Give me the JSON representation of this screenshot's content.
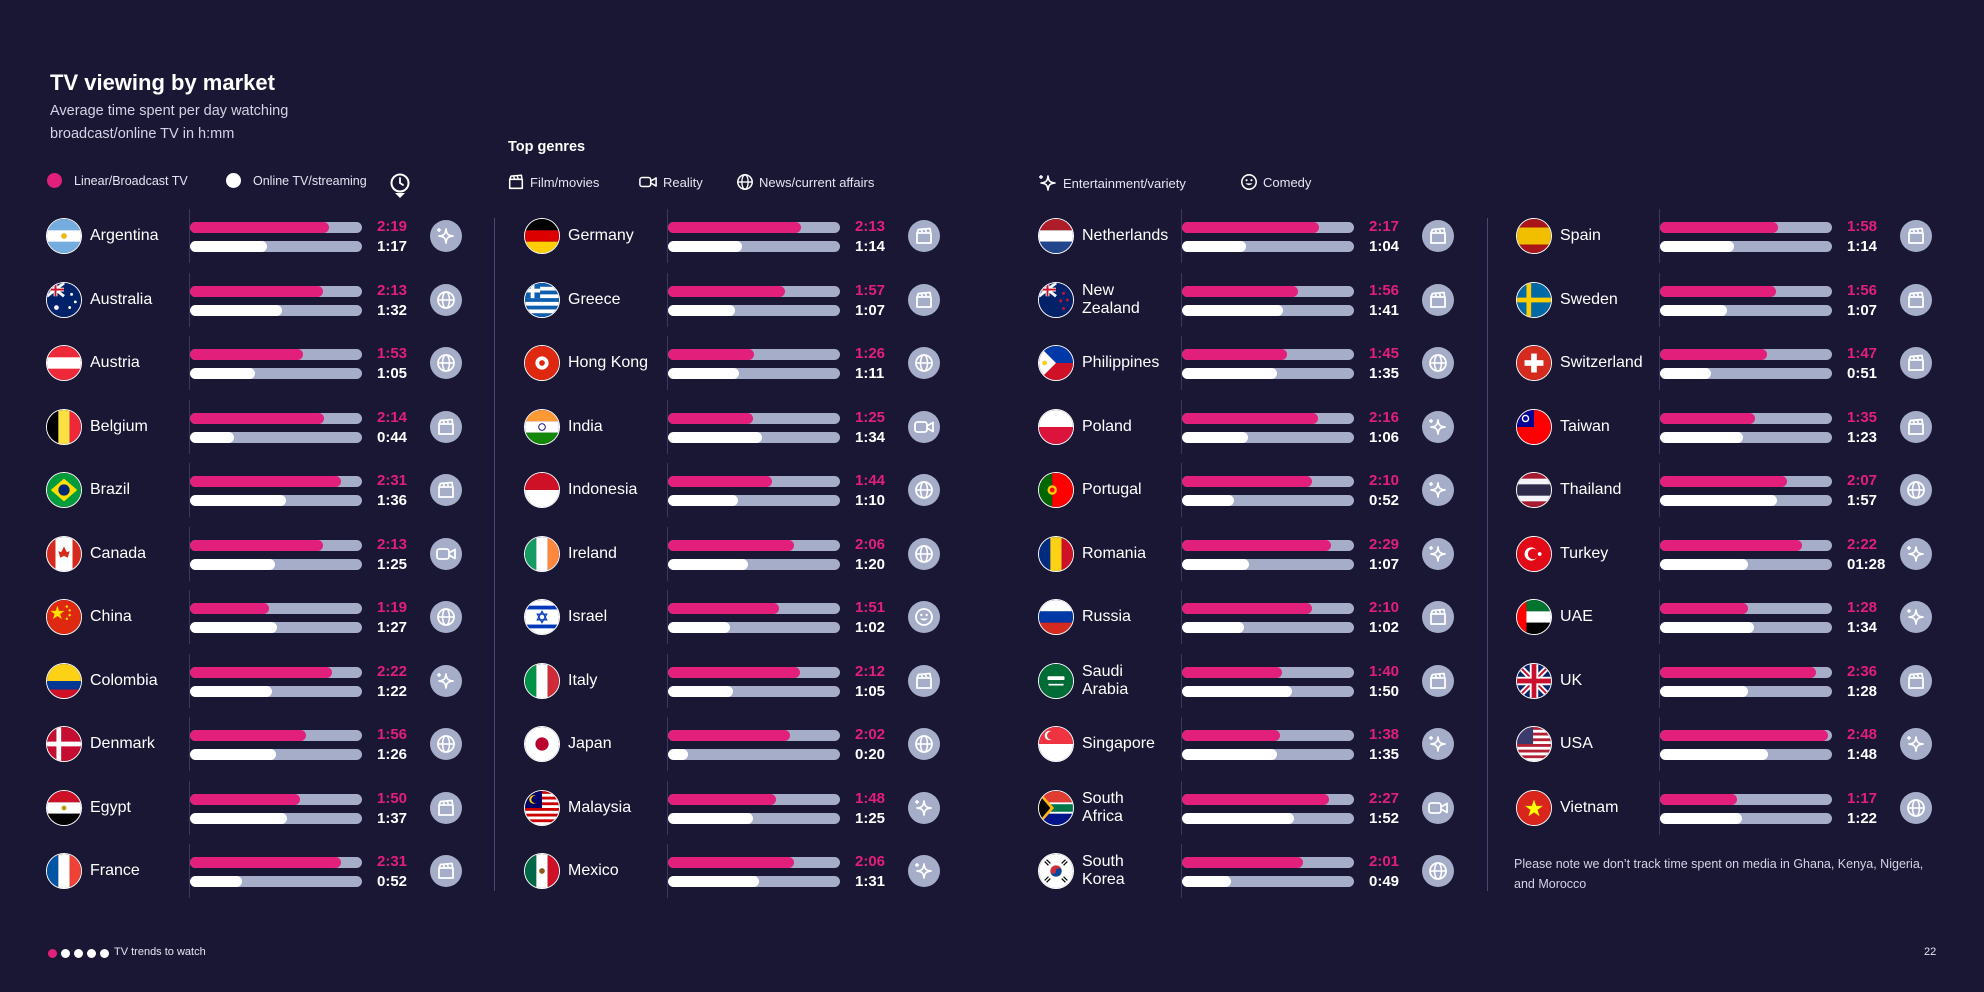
{
  "header": {
    "title": "TV viewing by market",
    "subtitle": "Average time spent per day watching broadcast/online TV in h:mm"
  },
  "legend": {
    "linear_label": "Linear/Broadcast TV",
    "online_label": "Online TV/streaming",
    "top_genre_marker_icon": "clock-marker-icon"
  },
  "genres": {
    "title": "Top genres",
    "items": [
      {
        "key": "film",
        "label": "Film/movies",
        "icon": "clapperboard-icon"
      },
      {
        "key": "reality",
        "label": "Reality",
        "icon": "video-camera-icon"
      },
      {
        "key": "news",
        "label": "News/current affairs",
        "icon": "globe-icon"
      },
      {
        "key": "ent",
        "label": "Entertainment/variety",
        "icon": "sparkle-icon"
      },
      {
        "key": "comedy",
        "label": "Comedy",
        "icon": "smiley-icon"
      }
    ]
  },
  "colors": {
    "background": "#1a1734",
    "linear": "#e21f7a",
    "online": "#ffffff",
    "track": "#a6adc8"
  },
  "chart_data": {
    "type": "bar",
    "title": "TV viewing by market",
    "subtitle": "Average time spent per day watching broadcast/online TV in h:mm",
    "unit": "h:mm",
    "xlim_minutes": [
      0,
      172
    ],
    "series": [
      {
        "name": "Linear/Broadcast TV",
        "key": "linear",
        "color": "#e21f7a"
      },
      {
        "name": "Online TV/streaming",
        "key": "online",
        "color": "#ffffff"
      }
    ],
    "columns": [
      [
        {
          "country": "Argentina",
          "linear": "2:19",
          "online": "1:17",
          "genre": "ent",
          "flag": "argentina"
        },
        {
          "country": "Australia",
          "linear": "2:13",
          "online": "1:32",
          "genre": "news",
          "flag": "australia"
        },
        {
          "country": "Austria",
          "linear": "1:53",
          "online": "1:05",
          "genre": "news",
          "flag": "austria"
        },
        {
          "country": "Belgium",
          "linear": "2:14",
          "online": "0:44",
          "genre": "film",
          "flag": "belgium"
        },
        {
          "country": "Brazil",
          "linear": "2:31",
          "online": "1:36",
          "genre": "film",
          "flag": "brazil"
        },
        {
          "country": "Canada",
          "linear": "2:13",
          "online": "1:25",
          "genre": "reality",
          "flag": "canada"
        },
        {
          "country": "China",
          "linear": "1:19",
          "online": "1:27",
          "genre": "news",
          "flag": "china"
        },
        {
          "country": "Colombia",
          "linear": "2:22",
          "online": "1:22",
          "genre": "ent",
          "flag": "colombia"
        },
        {
          "country": "Denmark",
          "linear": "1:56",
          "online": "1:26",
          "genre": "news",
          "flag": "denmark"
        },
        {
          "country": "Egypt",
          "linear": "1:50",
          "online": "1:37",
          "genre": "film",
          "flag": "egypt"
        },
        {
          "country": "France",
          "linear": "2:31",
          "online": "0:52",
          "genre": "film",
          "flag": "france"
        }
      ],
      [
        {
          "country": "Germany",
          "linear": "2:13",
          "online": "1:14",
          "genre": "film",
          "flag": "germany"
        },
        {
          "country": "Greece",
          "linear": "1:57",
          "online": "1:07",
          "genre": "film",
          "flag": "greece"
        },
        {
          "country": "Hong Kong",
          "linear": "1:26",
          "online": "1:11",
          "genre": "news",
          "flag": "hongkong"
        },
        {
          "country": "India",
          "linear": "1:25",
          "online": "1:34",
          "genre": "reality",
          "flag": "india"
        },
        {
          "country": "Indonesia",
          "linear": "1:44",
          "online": "1:10",
          "genre": "news",
          "flag": "indonesia"
        },
        {
          "country": "Ireland",
          "linear": "2:06",
          "online": "1:20",
          "genre": "news",
          "flag": "ireland"
        },
        {
          "country": "Israel",
          "linear": "1:51",
          "online": "1:02",
          "genre": "comedy",
          "flag": "israel"
        },
        {
          "country": "Italy",
          "linear": "2:12",
          "online": "1:05",
          "genre": "film",
          "flag": "italy"
        },
        {
          "country": "Japan",
          "linear": "2:02",
          "online": "0:20",
          "genre": "news",
          "flag": "japan"
        },
        {
          "country": "Malaysia",
          "linear": "1:48",
          "online": "1:25",
          "genre": "ent",
          "flag": "malaysia"
        },
        {
          "country": "Mexico",
          "linear": "2:06",
          "online": "1:31",
          "genre": "ent",
          "flag": "mexico"
        }
      ],
      [
        {
          "country": "Netherlands",
          "linear": "2:17",
          "online": "1:04",
          "genre": "film",
          "flag": "netherlands"
        },
        {
          "country": "New Zealand",
          "linear": "1:56",
          "online": "1:41",
          "genre": "film",
          "flag": "newzealand"
        },
        {
          "country": "Philippines",
          "linear": "1:45",
          "online": "1:35",
          "genre": "news",
          "flag": "philippines"
        },
        {
          "country": "Poland",
          "linear": "2:16",
          "online": "1:06",
          "genre": "ent",
          "flag": "poland"
        },
        {
          "country": "Portugal",
          "linear": "2:10",
          "online": "0:52",
          "genre": "ent",
          "flag": "portugal"
        },
        {
          "country": "Romania",
          "linear": "2:29",
          "online": "1:07",
          "genre": "ent",
          "flag": "romania"
        },
        {
          "country": "Russia",
          "linear": "2:10",
          "online": "1:02",
          "genre": "film",
          "flag": "russia"
        },
        {
          "country": "Saudi Arabia",
          "linear": "1:40",
          "online": "1:50",
          "genre": "film",
          "flag": "saudi"
        },
        {
          "country": "Singapore",
          "linear": "1:38",
          "online": "1:35",
          "genre": "ent",
          "flag": "singapore"
        },
        {
          "country": "South Africa",
          "linear": "2:27",
          "online": "1:52",
          "genre": "reality",
          "flag": "southafrica"
        },
        {
          "country": "South Korea",
          "linear": "2:01",
          "online": "0:49",
          "genre": "news",
          "flag": "southkorea"
        }
      ],
      [
        {
          "country": "Spain",
          "linear": "1:58",
          "online": "1:14",
          "genre": "film",
          "flag": "spain"
        },
        {
          "country": "Sweden",
          "linear": "1:56",
          "online": "1:07",
          "genre": "film",
          "flag": "sweden"
        },
        {
          "country": "Switzerland",
          "linear": "1:47",
          "online": "0:51",
          "genre": "film",
          "flag": "switzerland"
        },
        {
          "country": "Taiwan",
          "linear": "1:35",
          "online": "1:23",
          "genre": "film",
          "flag": "taiwan"
        },
        {
          "country": "Thailand",
          "linear": "2:07",
          "online": "1:57",
          "genre": "news",
          "flag": "thailand"
        },
        {
          "country": "Turkey",
          "linear": "2:22",
          "online": "01:28",
          "genre": "ent",
          "flag": "turkey"
        },
        {
          "country": "UAE",
          "linear": "1:28",
          "online": "1:34",
          "genre": "ent",
          "flag": "uae"
        },
        {
          "country": "UK",
          "linear": "2:36",
          "online": "1:28",
          "genre": "film",
          "flag": "uk"
        },
        {
          "country": "USA",
          "linear": "2:48",
          "online": "1:48",
          "genre": "ent",
          "flag": "usa"
        },
        {
          "country": "Vietnam",
          "linear": "1:17",
          "online": "1:22",
          "genre": "news",
          "flag": "vietnam"
        }
      ]
    ]
  },
  "note": "Please note we don’t track time spent on media in Ghana, Kenya, Nigeria, and Morocco",
  "footer": {
    "text": "TV trends to watch",
    "page_number": "22"
  }
}
